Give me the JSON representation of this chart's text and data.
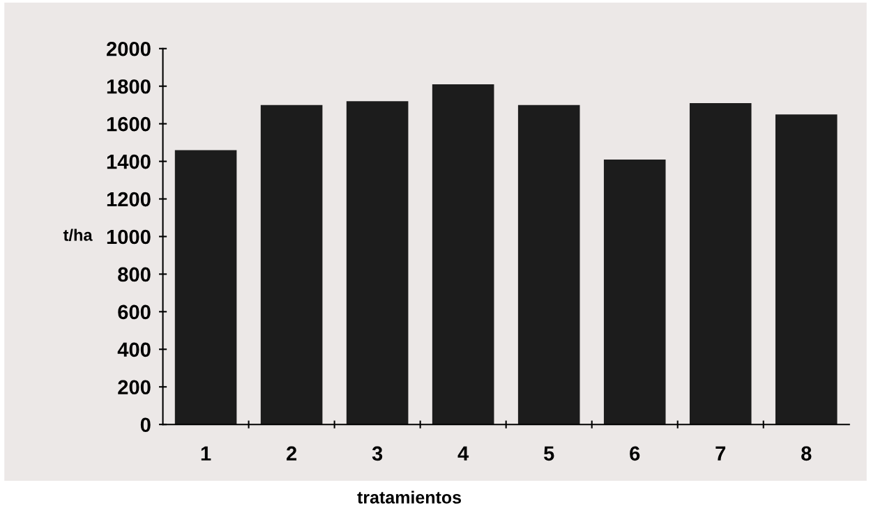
{
  "chart_data": {
    "type": "bar",
    "xlabel": "tratamientos",
    "ylabel": "t/ha",
    "categories": [
      "1",
      "2",
      "3",
      "4",
      "5",
      "6",
      "7",
      "8"
    ],
    "values": [
      1460,
      1700,
      1720,
      1810,
      1700,
      1410,
      1710,
      1650
    ],
    "color": "#1c1c1c",
    "ylim": [
      0,
      2000
    ],
    "yticks": [
      0,
      200,
      400,
      600,
      800,
      1000,
      1200,
      1400,
      1600,
      1800,
      2000
    ],
    "grid": false
  }
}
